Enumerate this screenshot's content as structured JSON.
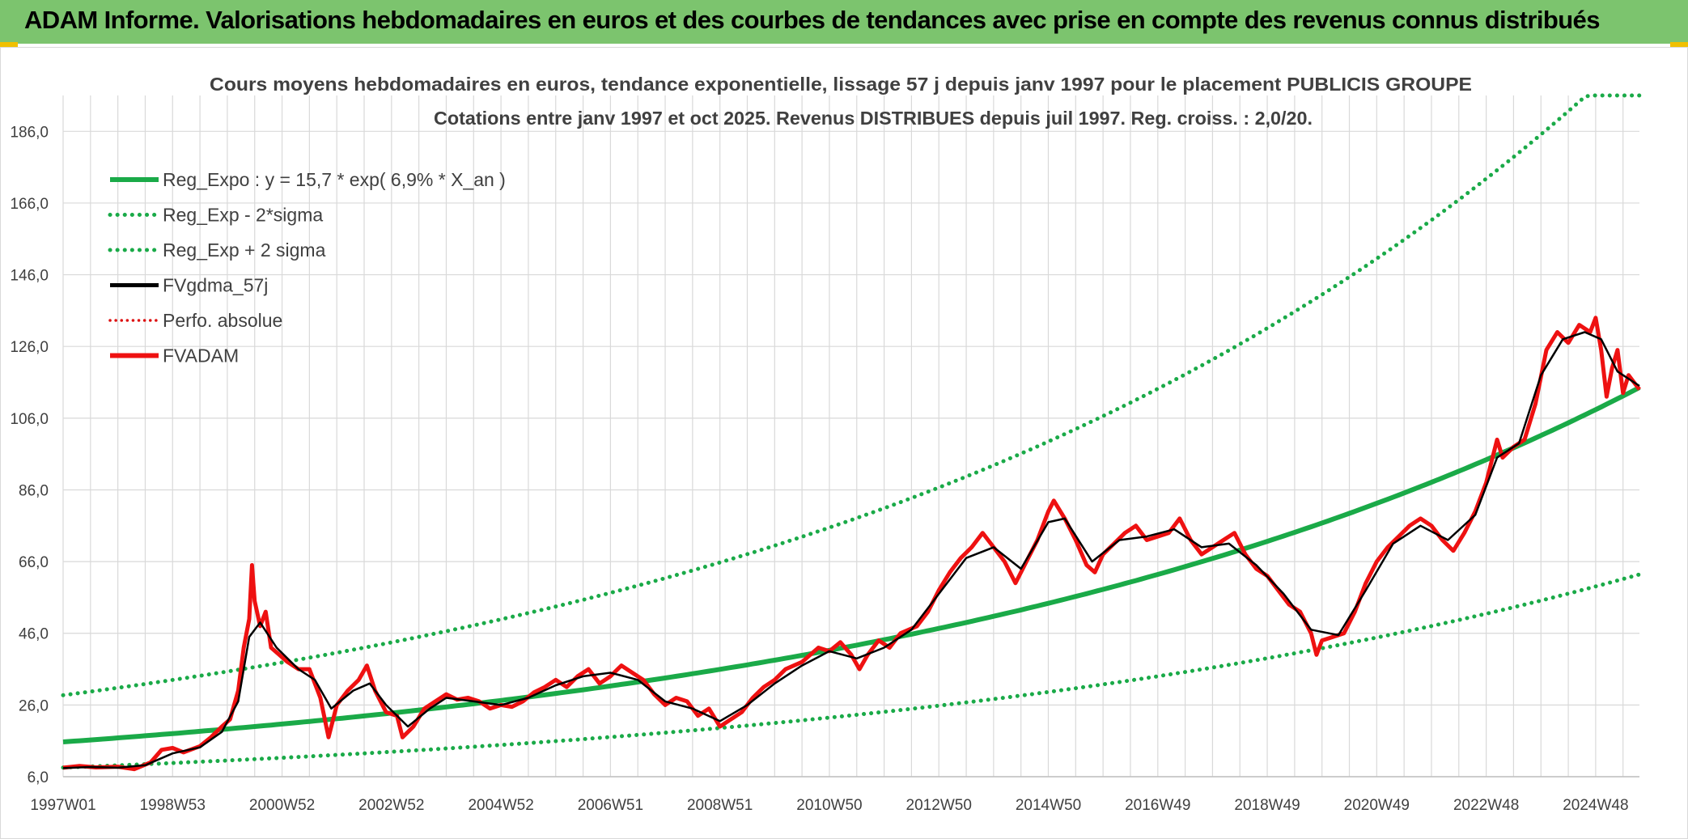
{
  "banner": {
    "title": "ADAM Informe. Valorisations hebdomadaires en euros et des courbes de tendances avec prise en compte des revenus connus distribués"
  },
  "colors": {
    "banner_bg": "#7cc46e",
    "trend": "#1aaa48",
    "smooth": "#000000",
    "price": "#ee1111",
    "perfo": "#dd1111",
    "grid": "#d9d9d9",
    "axis_text": "#404040",
    "title_text": "#404040"
  },
  "chart_data": {
    "type": "line",
    "title": "Cours moyens hebdomadaires en euros, tendance exponentielle, lissage 57 j depuis janv 1997 pour le placement PUBLICIS GROUPE",
    "subtitle": "Cotations entre janv 1997 et oct 2025. Revenus DISTRIBUES depuis juil 1997. Reg. croiss. : 2,0/20.",
    "xlabel": "",
    "ylabel": "",
    "xlim": [
      1997.0,
      2025.8
    ],
    "ylim": [
      6,
      196
    ],
    "y_ticks": [
      6,
      26,
      46,
      66,
      86,
      106,
      126,
      146,
      166,
      186
    ],
    "y_tick_labels": [
      "6,0",
      "26,0",
      "46,0",
      "66,0",
      "86,0",
      "106,0",
      "126,0",
      "146,0",
      "166,0",
      "186,0"
    ],
    "x_ticks": [
      1997.0,
      1999.0,
      2001.0,
      2003.0,
      2005.0,
      2007.0,
      2009.0,
      2011.0,
      2013.0,
      2015.0,
      2017.0,
      2019.0,
      2021.0,
      2023.0,
      2025.0
    ],
    "x_tick_labels": [
      "1997W01",
      "1998W53",
      "2000W52",
      "2002W52",
      "2004W52",
      "2006W51",
      "2008W51",
      "2010W50",
      "2012W50",
      "2014W50",
      "2016W49",
      "2018W49",
      "2020W49",
      "2022W48",
      "2024W48"
    ],
    "x_minor_step": 0.5,
    "grid": true,
    "legend_position": "top-left",
    "legend": [
      {
        "label": "Reg_Expo : y = 15,7 * exp( 6,9% *  X_an )",
        "style": "trend"
      },
      {
        "label": "Reg_Exp - 2*sigma",
        "style": "band"
      },
      {
        "label": "Reg_Exp + 2 sigma",
        "style": "band"
      },
      {
        "label": "FVgdma_57j",
        "style": "smooth"
      },
      {
        "label": "Perfo. absolue",
        "style": "perfo"
      },
      {
        "label": "FVADAM",
        "style": "price"
      }
    ],
    "trend": {
      "a": 15.7,
      "rate": 0.069,
      "x0": 1997.0,
      "lower_factor": 0.545,
      "upper_factor": 1.83
    },
    "series": [
      {
        "name": "FVADAM",
        "points": [
          [
            1997.0,
            8.5
          ],
          [
            1997.3,
            9.0
          ],
          [
            1997.6,
            8.6
          ],
          [
            1998.0,
            8.8
          ],
          [
            1998.3,
            8.1
          ],
          [
            1998.6,
            10.0
          ],
          [
            1998.8,
            13.5
          ],
          [
            1999.0,
            14.0
          ],
          [
            1999.2,
            12.8
          ],
          [
            1999.5,
            14.5
          ],
          [
            1999.7,
            17.0
          ],
          [
            1999.9,
            20.0
          ],
          [
            2000.05,
            22.0
          ],
          [
            2000.2,
            30.0
          ],
          [
            2000.3,
            42.0
          ],
          [
            2000.4,
            50.0
          ],
          [
            2000.45,
            65.0
          ],
          [
            2000.5,
            55.0
          ],
          [
            2000.6,
            48.0
          ],
          [
            2000.7,
            52.0
          ],
          [
            2000.8,
            42.0
          ],
          [
            2000.95,
            40.0
          ],
          [
            2001.1,
            38.0
          ],
          [
            2001.3,
            36.0
          ],
          [
            2001.5,
            36.0
          ],
          [
            2001.7,
            28.0
          ],
          [
            2001.85,
            17.0
          ],
          [
            2002.0,
            26.0
          ],
          [
            2002.2,
            30.0
          ],
          [
            2002.4,
            33.0
          ],
          [
            2002.55,
            37.0
          ],
          [
            2002.7,
            30.0
          ],
          [
            2002.9,
            24.0
          ],
          [
            2003.1,
            23.0
          ],
          [
            2003.2,
            17.0
          ],
          [
            2003.4,
            20.0
          ],
          [
            2003.6,
            25.0
          ],
          [
            2003.8,
            27.0
          ],
          [
            2004.0,
            29.0
          ],
          [
            2004.2,
            27.5
          ],
          [
            2004.4,
            28.0
          ],
          [
            2004.6,
            27.0
          ],
          [
            2004.8,
            25.0
          ],
          [
            2005.0,
            26.0
          ],
          [
            2005.2,
            25.5
          ],
          [
            2005.4,
            27.0
          ],
          [
            2005.6,
            29.5
          ],
          [
            2005.8,
            31.0
          ],
          [
            2006.0,
            33.0
          ],
          [
            2006.2,
            31.0
          ],
          [
            2006.4,
            34.0
          ],
          [
            2006.6,
            36.0
          ],
          [
            2006.8,
            32.0
          ],
          [
            2007.0,
            34.0
          ],
          [
            2007.2,
            37.0
          ],
          [
            2007.4,
            35.0
          ],
          [
            2007.6,
            33.0
          ],
          [
            2007.8,
            29.0
          ],
          [
            2008.0,
            26.0
          ],
          [
            2008.2,
            28.0
          ],
          [
            2008.4,
            27.0
          ],
          [
            2008.6,
            23.0
          ],
          [
            2008.8,
            25.0
          ],
          [
            2009.0,
            20.0
          ],
          [
            2009.2,
            22.0
          ],
          [
            2009.4,
            24.0
          ],
          [
            2009.6,
            28.0
          ],
          [
            2009.8,
            31.0
          ],
          [
            2010.0,
            33.0
          ],
          [
            2010.2,
            36.0
          ],
          [
            2010.5,
            38.0
          ],
          [
            2010.8,
            42.0
          ],
          [
            2011.0,
            41.0
          ],
          [
            2011.2,
            43.5
          ],
          [
            2011.4,
            40.0
          ],
          [
            2011.55,
            36.0
          ],
          [
            2011.7,
            40.0
          ],
          [
            2011.9,
            44.0
          ],
          [
            2012.1,
            42.0
          ],
          [
            2012.3,
            46.0
          ],
          [
            2012.6,
            48.0
          ],
          [
            2012.8,
            52.0
          ],
          [
            2013.0,
            58.0
          ],
          [
            2013.2,
            63.0
          ],
          [
            2013.4,
            67.0
          ],
          [
            2013.6,
            70.0
          ],
          [
            2013.8,
            74.0
          ],
          [
            2014.0,
            70.0
          ],
          [
            2014.2,
            66.0
          ],
          [
            2014.4,
            60.0
          ],
          [
            2014.6,
            66.0
          ],
          [
            2014.8,
            72.0
          ],
          [
            2015.0,
            80.0
          ],
          [
            2015.1,
            83.0
          ],
          [
            2015.3,
            78.0
          ],
          [
            2015.5,
            72.0
          ],
          [
            2015.7,
            65.0
          ],
          [
            2015.85,
            63.0
          ],
          [
            2016.0,
            68.0
          ],
          [
            2016.2,
            71.0
          ],
          [
            2016.4,
            74.0
          ],
          [
            2016.6,
            76.0
          ],
          [
            2016.8,
            72.0
          ],
          [
            2017.0,
            73.0
          ],
          [
            2017.2,
            74.0
          ],
          [
            2017.4,
            78.0
          ],
          [
            2017.6,
            72.0
          ],
          [
            2017.8,
            68.0
          ],
          [
            2018.0,
            70.0
          ],
          [
            2018.2,
            72.0
          ],
          [
            2018.4,
            74.0
          ],
          [
            2018.6,
            68.0
          ],
          [
            2018.8,
            64.0
          ],
          [
            2019.0,
            62.0
          ],
          [
            2019.2,
            58.0
          ],
          [
            2019.4,
            54.0
          ],
          [
            2019.6,
            52.0
          ],
          [
            2019.8,
            46.0
          ],
          [
            2019.9,
            40.0
          ],
          [
            2020.0,
            44.0
          ],
          [
            2020.2,
            45.0
          ],
          [
            2020.4,
            46.0
          ],
          [
            2020.6,
            52.0
          ],
          [
            2020.8,
            60.0
          ],
          [
            2021.0,
            66.0
          ],
          [
            2021.2,
            70.0
          ],
          [
            2021.4,
            73.0
          ],
          [
            2021.6,
            76.0
          ],
          [
            2021.8,
            78.0
          ],
          [
            2022.0,
            76.0
          ],
          [
            2022.2,
            72.0
          ],
          [
            2022.4,
            69.0
          ],
          [
            2022.6,
            74.0
          ],
          [
            2022.8,
            80.0
          ],
          [
            2023.0,
            88.0
          ],
          [
            2023.2,
            100.0
          ],
          [
            2023.3,
            95.0
          ],
          [
            2023.5,
            98.0
          ],
          [
            2023.7,
            100.0
          ],
          [
            2023.9,
            110.0
          ],
          [
            2024.1,
            125.0
          ],
          [
            2024.3,
            130.0
          ],
          [
            2024.5,
            127.0
          ],
          [
            2024.7,
            132.0
          ],
          [
            2024.9,
            130.0
          ],
          [
            2025.0,
            134.0
          ],
          [
            2025.1,
            125.0
          ],
          [
            2025.2,
            112.0
          ],
          [
            2025.3,
            120.0
          ],
          [
            2025.4,
            125.0
          ],
          [
            2025.5,
            113.0
          ],
          [
            2025.6,
            118.0
          ],
          [
            2025.7,
            116.0
          ],
          [
            2025.8,
            114.0
          ]
        ]
      },
      {
        "name": "FVgdma_57j",
        "points": [
          [
            1997.0,
            8.4
          ],
          [
            1997.5,
            8.7
          ],
          [
            1998.0,
            8.5
          ],
          [
            1998.5,
            9.2
          ],
          [
            1999.0,
            12.5
          ],
          [
            1999.5,
            14.2
          ],
          [
            1999.9,
            18.5
          ],
          [
            2000.2,
            27.0
          ],
          [
            2000.4,
            45.0
          ],
          [
            2000.6,
            49.0
          ],
          [
            2000.9,
            42.0
          ],
          [
            2001.3,
            36.0
          ],
          [
            2001.6,
            33.0
          ],
          [
            2001.9,
            25.0
          ],
          [
            2002.3,
            30.0
          ],
          [
            2002.6,
            32.0
          ],
          [
            2002.9,
            26.0
          ],
          [
            2003.3,
            20.0
          ],
          [
            2003.7,
            25.0
          ],
          [
            2004.0,
            28.0
          ],
          [
            2004.5,
            27.0
          ],
          [
            2005.0,
            26.0
          ],
          [
            2005.5,
            28.0
          ],
          [
            2006.0,
            31.5
          ],
          [
            2006.5,
            34.0
          ],
          [
            2007.0,
            35.0
          ],
          [
            2007.5,
            33.0
          ],
          [
            2008.0,
            27.0
          ],
          [
            2008.5,
            25.0
          ],
          [
            2009.0,
            21.5
          ],
          [
            2009.5,
            26.0
          ],
          [
            2010.0,
            32.0
          ],
          [
            2010.5,
            37.0
          ],
          [
            2011.0,
            41.0
          ],
          [
            2011.5,
            39.0
          ],
          [
            2012.0,
            42.0
          ],
          [
            2012.5,
            47.0
          ],
          [
            2013.0,
            57.0
          ],
          [
            2013.5,
            67.0
          ],
          [
            2014.0,
            70.0
          ],
          [
            2014.5,
            64.0
          ],
          [
            2015.0,
            77.0
          ],
          [
            2015.3,
            78.0
          ],
          [
            2015.8,
            66.0
          ],
          [
            2016.3,
            72.0
          ],
          [
            2016.8,
            73.0
          ],
          [
            2017.3,
            75.0
          ],
          [
            2017.8,
            70.0
          ],
          [
            2018.3,
            71.0
          ],
          [
            2018.8,
            65.0
          ],
          [
            2019.3,
            57.0
          ],
          [
            2019.8,
            47.0
          ],
          [
            2020.3,
            45.5
          ],
          [
            2020.8,
            58.0
          ],
          [
            2021.3,
            71.0
          ],
          [
            2021.8,
            76.0
          ],
          [
            2022.3,
            72.0
          ],
          [
            2022.8,
            79.0
          ],
          [
            2023.2,
            95.0
          ],
          [
            2023.6,
            99.0
          ],
          [
            2024.0,
            118.0
          ],
          [
            2024.4,
            128.0
          ],
          [
            2024.8,
            130.0
          ],
          [
            2025.1,
            128.0
          ],
          [
            2025.4,
            119.0
          ],
          [
            2025.8,
            115.0
          ]
        ]
      }
    ]
  }
}
